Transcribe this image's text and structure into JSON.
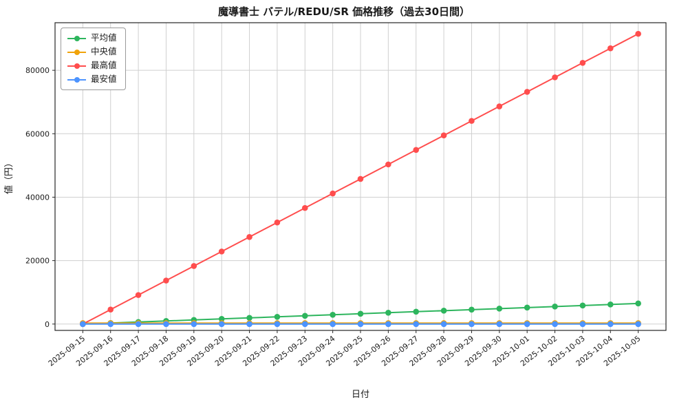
{
  "chart_data": {
    "type": "line",
    "title": "魔導書士 バテル/REDU/SR 価格推移（過去30日間）",
    "xlabel": "日付",
    "ylabel": "値（円）",
    "grid": true,
    "legend_position": "upper-left",
    "ylim": [
      -2000,
      95000
    ],
    "yticks": [
      0,
      20000,
      40000,
      60000,
      80000
    ],
    "categories": [
      "2025-09-15",
      "2025-09-16",
      "2025-09-17",
      "2025-09-18",
      "2025-09-19",
      "2025-09-20",
      "2025-09-21",
      "2025-09-22",
      "2025-09-23",
      "2025-09-24",
      "2025-09-25",
      "2025-09-26",
      "2025-09-27",
      "2025-09-28",
      "2025-09-29",
      "2025-09-30",
      "2025-10-01",
      "2025-10-02",
      "2025-10-03",
      "2025-10-04",
      "2025-10-05"
    ],
    "series": [
      {
        "key": "avg",
        "name": "平均値",
        "color": "#2db55d",
        "values": [
          0,
          325,
          650,
          975,
          1300,
          1625,
          1950,
          2275,
          2600,
          2925,
          3250,
          3575,
          3900,
          4225,
          4550,
          4875,
          5200,
          5525,
          5850,
          6175,
          6500
        ]
      },
      {
        "key": "median",
        "name": "中央値",
        "color": "#f0a30a",
        "values": [
          300,
          300,
          300,
          300,
          300,
          300,
          300,
          300,
          300,
          300,
          300,
          300,
          300,
          300,
          300,
          300,
          300,
          300,
          300,
          300,
          300
        ]
      },
      {
        "key": "max",
        "name": "最高値",
        "color": "#ff4d4d",
        "values": [
          0,
          4575,
          9150,
          13725,
          18300,
          22875,
          27450,
          32025,
          36600,
          41175,
          45750,
          50325,
          54900,
          59475,
          64050,
          68625,
          73200,
          77775,
          82350,
          86925,
          91500
        ]
      },
      {
        "key": "min",
        "name": "最安値",
        "color": "#4d94ff",
        "values": [
          0,
          0,
          0,
          0,
          0,
          0,
          0,
          0,
          0,
          0,
          0,
          0,
          0,
          0,
          0,
          0,
          0,
          0,
          0,
          0,
          0
        ]
      }
    ]
  }
}
